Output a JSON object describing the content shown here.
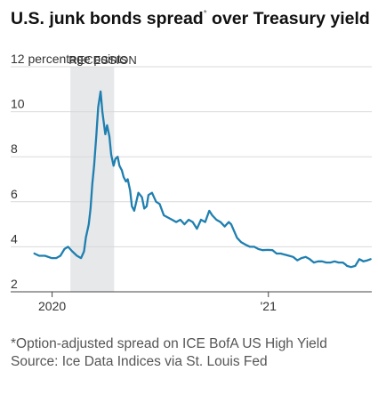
{
  "chart_title": "U.S. junk bonds spread",
  "chart_title_mark": "*",
  "chart_title_rest": " over Treasury yield",
  "footnote": "*Option-adjusted spread on ICE BofA US High Yield",
  "source": "Source: Ice Data Indices via St. Louis Fed",
  "colors": {
    "line": "#1f7fb0",
    "recession": "#e6e8ea",
    "grid": "#d9d9d9",
    "axis": "#444444"
  },
  "chart_data": {
    "type": "line",
    "title": "U.S. junk bonds spread* over Treasury yield",
    "ylabel": "percentage points",
    "ylim": [
      2,
      12
    ],
    "yticks": [
      {
        "value": 12,
        "label": "12 percentage points"
      },
      {
        "value": 10,
        "label": "10"
      },
      {
        "value": 8,
        "label": "8"
      },
      {
        "value": 6,
        "label": "6"
      },
      {
        "value": 4,
        "label": "4"
      },
      {
        "value": 2,
        "label": "2"
      }
    ],
    "xlim": [
      "2019-12-01",
      "2021-06-25"
    ],
    "xticks": [
      {
        "value": "2020-01-01",
        "label": "2020"
      },
      {
        "value": "2021-01-01",
        "label": "'21"
      }
    ],
    "annotations": [
      {
        "label": "RECESSION",
        "start": "2020-02-01",
        "end": "2020-04-15"
      }
    ],
    "grid": true,
    "series": [
      {
        "x": [
          "2019-12-02",
          "2019-12-10",
          "2019-12-20",
          "2019-12-31",
          "2020-01-08",
          "2020-01-15",
          "2020-01-22",
          "2020-01-28",
          "2020-02-04",
          "2020-02-12",
          "2020-02-19",
          "2020-02-24",
          "2020-02-27",
          "2020-03-03",
          "2020-03-06",
          "2020-03-09",
          "2020-03-12",
          "2020-03-16",
          "2020-03-19",
          "2020-03-23",
          "2020-03-26",
          "2020-03-31",
          "2020-04-03",
          "2020-04-07",
          "2020-04-10",
          "2020-04-14",
          "2020-04-17",
          "2020-04-21",
          "2020-04-24",
          "2020-04-28",
          "2020-05-01",
          "2020-05-05",
          "2020-05-08",
          "2020-05-12",
          "2020-05-15",
          "2020-05-19",
          "2020-05-26",
          "2020-06-01",
          "2020-06-05",
          "2020-06-09",
          "2020-06-12",
          "2020-06-18",
          "2020-06-25",
          "2020-07-01",
          "2020-07-08",
          "2020-07-15",
          "2020-07-22",
          "2020-07-29",
          "2020-08-05",
          "2020-08-12",
          "2020-08-19",
          "2020-08-26",
          "2020-09-02",
          "2020-09-09",
          "2020-09-16",
          "2020-09-23",
          "2020-09-28",
          "2020-10-05",
          "2020-10-12",
          "2020-10-19",
          "2020-10-26",
          "2020-10-30",
          "2020-11-04",
          "2020-11-09",
          "2020-11-16",
          "2020-11-23",
          "2020-12-01",
          "2020-12-08",
          "2020-12-15",
          "2020-12-22",
          "2020-12-31",
          "2021-01-08",
          "2021-01-15",
          "2021-01-22",
          "2021-01-29",
          "2021-02-05",
          "2021-02-12",
          "2021-02-19",
          "2021-02-26",
          "2021-03-05",
          "2021-03-12",
          "2021-03-19",
          "2021-03-26",
          "2021-04-02",
          "2021-04-09",
          "2021-04-16",
          "2021-04-23",
          "2021-04-30",
          "2021-05-07",
          "2021-05-12",
          "2021-05-14",
          "2021-05-21",
          "2021-05-28",
          "2021-06-04",
          "2021-06-11",
          "2021-06-18",
          "2021-06-23"
        ],
        "values": [
          3.7,
          3.6,
          3.6,
          3.5,
          3.5,
          3.6,
          3.9,
          4.0,
          3.8,
          3.6,
          3.5,
          3.8,
          4.4,
          5.0,
          5.7,
          6.8,
          7.6,
          9.0,
          10.2,
          10.9,
          10.0,
          9.0,
          9.4,
          8.9,
          8.1,
          7.6,
          7.9,
          8.0,
          7.6,
          7.4,
          7.1,
          6.9,
          7.0,
          6.5,
          5.8,
          5.6,
          6.4,
          6.2,
          5.7,
          5.8,
          6.3,
          6.4,
          6.0,
          5.9,
          5.4,
          5.3,
          5.2,
          5.1,
          5.2,
          5.0,
          5.2,
          5.1,
          4.8,
          5.2,
          5.1,
          5.6,
          5.4,
          5.2,
          5.1,
          4.9,
          5.1,
          5.0,
          4.7,
          4.4,
          4.2,
          4.1,
          4.0,
          4.0,
          3.9,
          3.85,
          3.86,
          3.85,
          3.7,
          3.7,
          3.65,
          3.6,
          3.55,
          3.4,
          3.5,
          3.55,
          3.45,
          3.3,
          3.35,
          3.35,
          3.3,
          3.3,
          3.35,
          3.3,
          3.3,
          3.2,
          3.15,
          3.1,
          3.15,
          3.45,
          3.35,
          3.4,
          3.45
        ]
      }
    ]
  }
}
